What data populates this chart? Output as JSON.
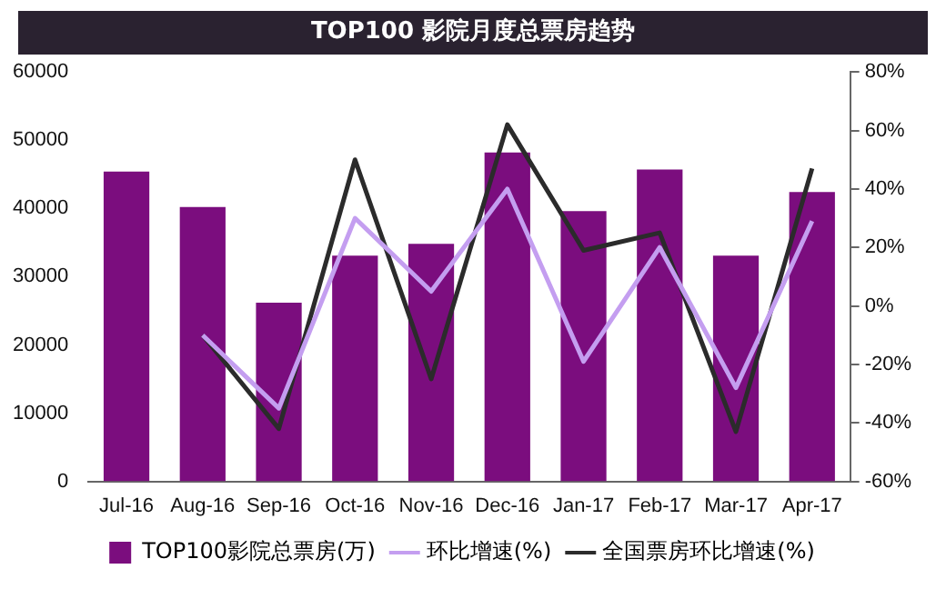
{
  "chart_data": {
    "type": "bar",
    "title": "TOP100 影院月度总票房趋势",
    "categories": [
      "Jul-16",
      "Aug-16",
      "Sep-16",
      "Oct-16",
      "Nov-16",
      "Dec-16",
      "Jan-17",
      "Feb-17",
      "Mar-17",
      "Apr-17"
    ],
    "series": [
      {
        "name": "TOP100影院总票房(万)",
        "color": "#7b0d7e",
        "values": [
          45400,
          40200,
          26200,
          33100,
          34800,
          48200,
          39600,
          45700,
          33100,
          42400
        ]
      },
      {
        "name": "环比增速(%)",
        "type": "line",
        "axis": "y2",
        "color": "#c49ef0",
        "values": [
          null,
          -10,
          -35,
          30,
          5,
          40,
          -19,
          20,
          -28,
          29
        ]
      },
      {
        "name": "全国票房环比增速(%)",
        "type": "line",
        "axis": "y2",
        "color": "#2b2b2b",
        "values": [
          null,
          -10,
          -42,
          50,
          -25,
          62,
          19,
          25,
          -43,
          47
        ]
      }
    ],
    "ylim": [
      0,
      60000
    ],
    "yticks": [
      0,
      10000,
      20000,
      30000,
      40000,
      50000,
      60000
    ],
    "y2lim": [
      -60,
      80
    ],
    "y2ticks": [
      {
        "value": -60,
        "label": "-60%"
      },
      {
        "value": -40,
        "label": "-40%"
      },
      {
        "value": -20,
        "label": "-20%"
      },
      {
        "value": 0,
        "label": "0%"
      },
      {
        "value": 20,
        "label": "20%"
      },
      {
        "value": 40,
        "label": "40%"
      },
      {
        "value": 60,
        "label": "60%"
      },
      {
        "value": 80,
        "label": "80%"
      }
    ],
    "grid": false,
    "legend": "bottom",
    "marker": "none"
  }
}
